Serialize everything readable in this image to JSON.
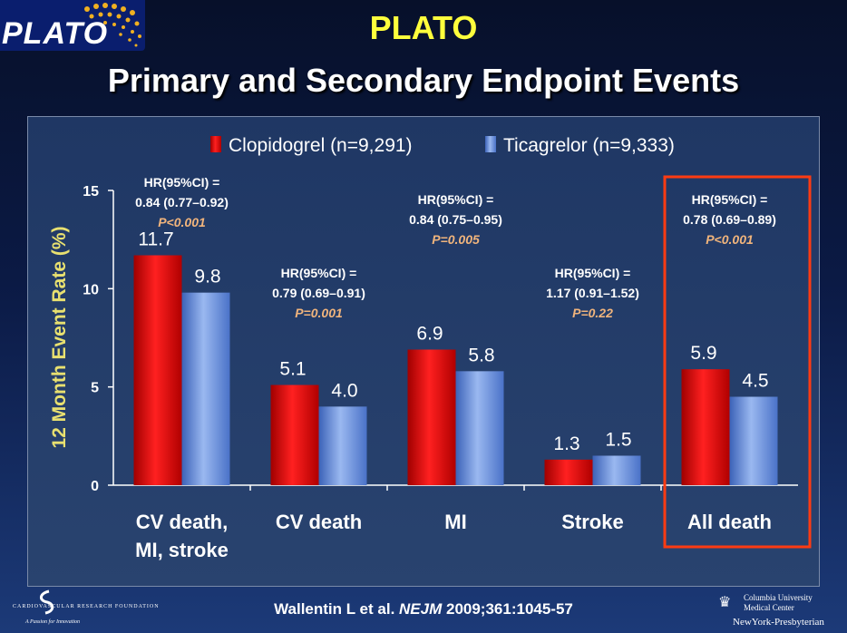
{
  "header": {
    "logo_text": "PLATO",
    "title": "PLATO",
    "subtitle": "Primary and Secondary Endpoint Events"
  },
  "chart_data": {
    "type": "bar",
    "ylabel": "12 Month Event Rate (%)",
    "ylim": [
      0,
      15
    ],
    "yticks": [
      0,
      5,
      10,
      15
    ],
    "categories": [
      [
        "CV death,",
        "MI, stroke"
      ],
      [
        "CV death"
      ],
      [
        "MI"
      ],
      [
        "Stroke"
      ],
      [
        "All death"
      ]
    ],
    "series": [
      {
        "name": "Clopidogrel (n=9,291)",
        "color": "#e00000",
        "values": [
          11.7,
          5.1,
          6.9,
          1.3,
          5.9
        ],
        "labels": [
          "11.7",
          "5.1",
          "6.9",
          "1.3",
          "5.9"
        ]
      },
      {
        "name": "Ticagrelor (n=9,333)",
        "color": "#5b86d8",
        "values": [
          9.8,
          4.0,
          5.8,
          1.5,
          4.5
        ],
        "labels": [
          "9.8",
          "4.0",
          "5.8",
          "1.5",
          "4.5"
        ]
      }
    ],
    "annotations": [
      {
        "hr_label": "HR(95%CI) =",
        "hr_value": "0.84 (0.77–0.92)",
        "p_value": "P<0.001"
      },
      {
        "hr_label": "HR(95%CI) =",
        "hr_value": "0.79 (0.69–0.91)",
        "p_value": "P=0.001"
      },
      {
        "hr_label": "HR(95%CI) =",
        "hr_value": "0.84 (0.75–0.95)",
        "p_value": "P=0.005"
      },
      {
        "hr_label": "HR(95%CI) =",
        "hr_value": "1.17 (0.91–1.52)",
        "p_value": "P=0.22"
      },
      {
        "hr_label": "HR(95%CI) =",
        "hr_value": "0.78 (0.69–0.89)",
        "p_value": "P<0.001"
      }
    ],
    "highlight_category": "All death",
    "highlight_color": "#ff3b12",
    "grid": false,
    "legend_position": "top-center"
  },
  "footer": {
    "citation_authors": "Wallentin L et al. ",
    "citation_journal": "NEJM",
    "citation_rest": " 2009;361:1045-57",
    "left_logo_name": "CARDIOVASCULAR RESEARCH FOUNDATION",
    "left_logo_tagline": "A Passion for Innovation",
    "right_logo_line1": "Columbia University",
    "right_logo_line2": "Medical Center",
    "right_logo_line3": "NewYork-Presbyterian"
  },
  "colors": {
    "title": "#ffff3c",
    "ylabel": "#e8e070",
    "p_value": "#f0b47c"
  }
}
